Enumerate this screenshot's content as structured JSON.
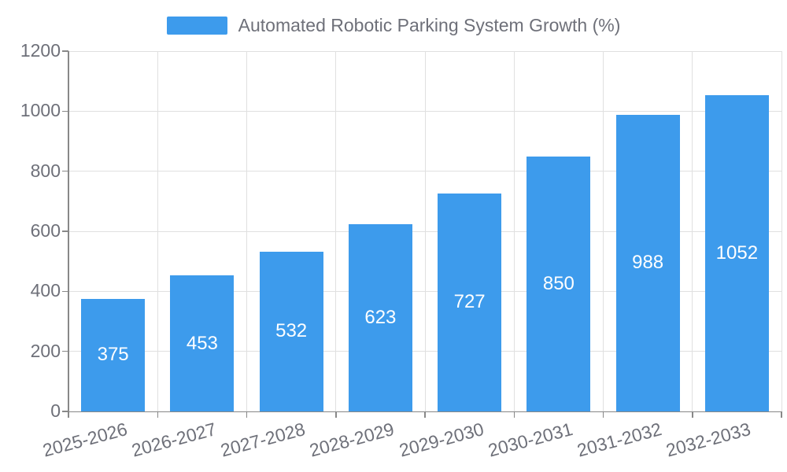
{
  "chart_data": {
    "type": "bar",
    "title": "Automated Robotic Parking System Growth (%)",
    "legend_label": "Automated Robotic Parking System Growth (%)",
    "legend_position": "top-center",
    "categories": [
      "2025-2026",
      "2026-2027",
      "2027-2028",
      "2028-2029",
      "2029-2030",
      "2030-2031",
      "2031-2032",
      "2032-2033"
    ],
    "values": [
      375,
      453,
      532,
      623,
      727,
      850,
      988,
      1052
    ],
    "value_labels": [
      "375",
      "453",
      "532",
      "623",
      "727",
      "850",
      "988",
      "1052"
    ],
    "xlabel": "",
    "ylabel": "",
    "ylim": [
      0,
      1200
    ],
    "yticks": [
      0,
      200,
      400,
      600,
      800,
      1000,
      1200
    ],
    "ytick_labels": [
      "0",
      "200",
      "400",
      "600",
      "800",
      "1000",
      "1200"
    ],
    "grid": true,
    "x_label_rotation_deg": -15,
    "colors": {
      "bar": "#3D9BEC",
      "value_label": "#FFFFFF",
      "axis": "#888888",
      "grid": "#E0E0E0",
      "text": "#6E7079",
      "background": "#FFFFFF"
    }
  }
}
